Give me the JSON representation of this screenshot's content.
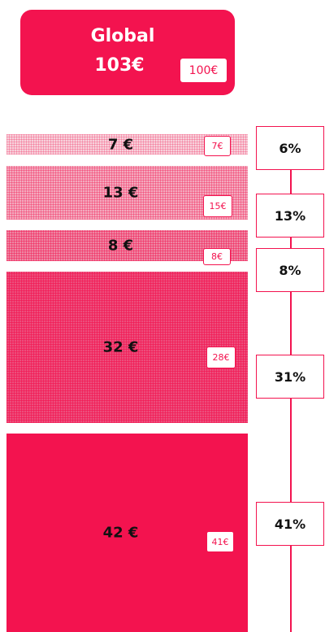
{
  "header": {
    "title": "Global",
    "total": "103€",
    "badge": "100€"
  },
  "rows": [
    {
      "amount": "7 €",
      "budget": "7€",
      "percent": "6%"
    },
    {
      "amount": "13 €",
      "budget": "15€",
      "percent": "13%"
    },
    {
      "amount": "8 €",
      "budget": "8€",
      "percent": "8%"
    },
    {
      "amount": "32 €",
      "budget": "28€",
      "percent": "31%"
    },
    {
      "amount": "42 €",
      "budget": "41€",
      "percent": "41%"
    }
  ]
}
